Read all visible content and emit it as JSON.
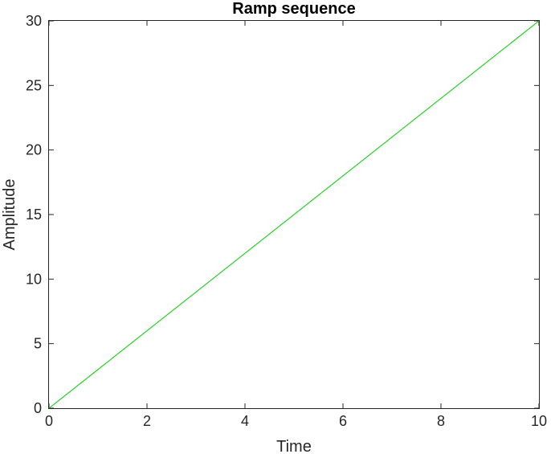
{
  "chart_data": {
    "type": "line",
    "title": "Ramp sequence",
    "xlabel": "Time",
    "ylabel": "Amplitude",
    "xlim": [
      0,
      10
    ],
    "ylim": [
      0,
      30
    ],
    "x_ticks": [
      0,
      2,
      4,
      6,
      8,
      10
    ],
    "y_ticks": [
      0,
      5,
      10,
      15,
      20,
      25,
      30
    ],
    "grid": false,
    "series": [
      {
        "color": "#00cc00",
        "x": [
          0,
          10
        ],
        "y": [
          0,
          30
        ]
      }
    ]
  }
}
